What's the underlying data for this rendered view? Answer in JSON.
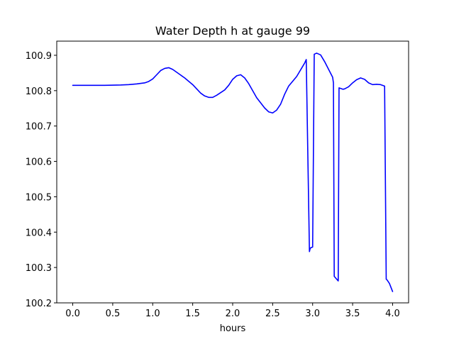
{
  "chart_data": {
    "type": "line",
    "title": "Water Depth h at gauge 99",
    "xlabel": "hours",
    "ylabel": "",
    "xlim": [
      -0.2,
      4.2
    ],
    "ylim": [
      100.2,
      100.94
    ],
    "x_ticks": [
      0.0,
      0.5,
      1.0,
      1.5,
      2.0,
      2.5,
      3.0,
      3.5,
      4.0
    ],
    "x_tick_labels": [
      "0.0",
      "0.5",
      "1.0",
      "1.5",
      "2.0",
      "2.5",
      "3.0",
      "3.5",
      "4.0"
    ],
    "y_ticks": [
      100.2,
      100.3,
      100.4,
      100.5,
      100.6,
      100.7,
      100.8,
      100.9
    ],
    "y_tick_labels": [
      "100.2",
      "100.3",
      "100.4",
      "100.5",
      "100.6",
      "100.7",
      "100.8",
      "100.9"
    ],
    "grid": false,
    "series": [
      {
        "color": "#0000ff",
        "x": [
          0.0,
          0.2,
          0.4,
          0.6,
          0.7,
          0.8,
          0.9,
          0.95,
          1.0,
          1.05,
          1.1,
          1.15,
          1.2,
          1.25,
          1.3,
          1.4,
          1.5,
          1.55,
          1.6,
          1.65,
          1.7,
          1.75,
          1.8,
          1.9,
          1.95,
          2.0,
          2.05,
          2.1,
          2.15,
          2.2,
          2.3,
          2.4,
          2.45,
          2.5,
          2.55,
          2.6,
          2.65,
          2.7,
          2.8,
          2.9,
          2.92,
          2.96,
          2.97,
          3.0,
          3.02,
          3.05,
          3.1,
          3.15,
          3.2,
          3.25,
          3.26,
          3.27,
          3.32,
          3.33,
          3.38,
          3.4,
          3.45,
          3.5,
          3.55,
          3.6,
          3.65,
          3.7,
          3.75,
          3.8,
          3.85,
          3.9,
          3.92,
          3.93,
          3.96,
          4.0
        ],
        "y": [
          100.815,
          100.815,
          100.815,
          100.816,
          100.817,
          100.819,
          100.822,
          100.826,
          100.833,
          100.845,
          100.857,
          100.863,
          100.865,
          100.86,
          100.852,
          100.836,
          100.817,
          100.805,
          100.793,
          100.785,
          100.781,
          100.781,
          100.787,
          100.802,
          100.815,
          100.832,
          100.842,
          100.845,
          100.836,
          100.82,
          100.78,
          100.751,
          100.74,
          100.737,
          100.745,
          100.762,
          100.79,
          100.813,
          100.84,
          100.878,
          100.888,
          100.345,
          100.355,
          100.358,
          100.903,
          100.906,
          100.901,
          100.882,
          100.86,
          100.838,
          100.822,
          100.275,
          100.262,
          100.808,
          100.804,
          100.805,
          100.811,
          100.822,
          100.831,
          100.836,
          100.832,
          100.822,
          100.817,
          100.818,
          100.817,
          100.813,
          100.267,
          100.265,
          100.255,
          100.232
        ]
      }
    ]
  }
}
